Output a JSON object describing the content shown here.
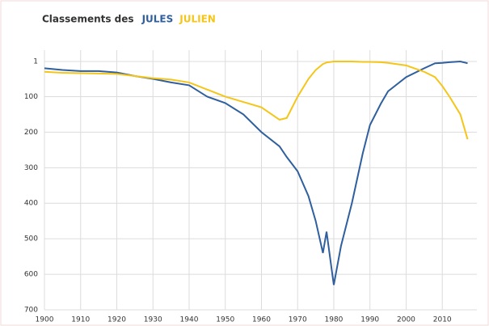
{
  "chart_data": {
    "type": "line",
    "title": "Classements des",
    "x": [
      1900,
      1905,
      1910,
      1915,
      1920,
      1925,
      1930,
      1935,
      1940,
      1945,
      1950,
      1955,
      1960,
      1965,
      1967,
      1970,
      1973,
      1975,
      1977,
      1978,
      1980,
      1982,
      1985,
      1988,
      1990,
      1993,
      1995,
      2000,
      2005,
      2008,
      2010,
      2012,
      2015,
      2017
    ],
    "series": [
      {
        "name": "JULES",
        "color": "#2f5f9e",
        "values": [
          20,
          25,
          28,
          28,
          32,
          42,
          50,
          60,
          68,
          100,
          118,
          150,
          200,
          240,
          270,
          310,
          380,
          450,
          540,
          480,
          630,
          520,
          400,
          260,
          180,
          120,
          85,
          45,
          20,
          6,
          5,
          3,
          1,
          6
        ]
      },
      {
        "name": "JULIEN",
        "color": "#f5c518",
        "values": [
          30,
          33,
          34,
          35,
          36,
          42,
          48,
          52,
          60,
          80,
          100,
          115,
          130,
          165,
          160,
          100,
          50,
          25,
          8,
          4,
          1,
          1,
          1,
          2,
          2,
          3,
          5,
          12,
          30,
          45,
          70,
          100,
          150,
          220
        ]
      }
    ],
    "xlim": [
      1900,
      2018
    ],
    "xticks": [
      1900,
      1910,
      1920,
      1930,
      1940,
      1950,
      1960,
      1970,
      1980,
      1990,
      2000,
      2010
    ],
    "ylim": [
      700,
      1
    ],
    "yticks": [
      1,
      100,
      200,
      300,
      400,
      500,
      600,
      700
    ],
    "grid": true
  }
}
